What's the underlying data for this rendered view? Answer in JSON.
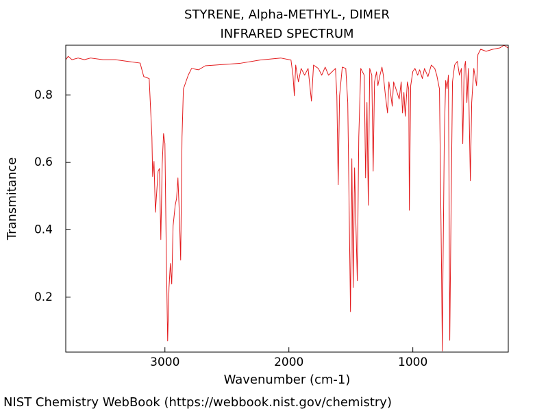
{
  "chart_data": {
    "type": "line",
    "title": "STYRENE, Alpha-METHYL-, DIMER",
    "subtitle": "INFRARED SPECTRUM",
    "x_label": "Wavenumber (cm-1)",
    "y_label": "Transmitance",
    "footer": "NIST Chemistry WebBook (https://webbook.nist.gov/chemistry)",
    "color": "#e31a1c",
    "xlim": [
      3800,
      230
    ],
    "ylim": [
      0.037,
      0.948
    ],
    "xticks": [
      3000,
      2000,
      1000
    ],
    "yticks": [
      0.2,
      0.4,
      0.6,
      0.8
    ],
    "x": [
      3800,
      3780,
      3750,
      3700,
      3650,
      3600,
      3500,
      3400,
      3300,
      3200,
      3171,
      3127,
      3105,
      3099,
      3088,
      3077,
      3055,
      3044,
      3033,
      3022,
      3011,
      3000,
      2989,
      2978,
      2967,
      2956,
      2945,
      2934,
      2917,
      2906,
      2895,
      2884,
      2873,
      2862,
      2851,
      2812,
      2785,
      2729,
      2674,
      2398,
      2232,
      2066,
      1983,
      1967,
      1956,
      1945,
      1923,
      1901,
      1873,
      1845,
      1818,
      1801,
      1762,
      1735,
      1707,
      1680,
      1652,
      1624,
      1613,
      1602,
      1591,
      1569,
      1541,
      1525,
      1514,
      1503,
      1492,
      1481,
      1470,
      1459,
      1448,
      1436,
      1420,
      1392,
      1381,
      1370,
      1359,
      1348,
      1331,
      1320,
      1309,
      1293,
      1282,
      1265,
      1249,
      1238,
      1221,
      1204,
      1193,
      1177,
      1166,
      1155,
      1127,
      1110,
      1094,
      1083,
      1072,
      1061,
      1044,
      1033,
      1028,
      1017,
      1000,
      983,
      961,
      945,
      923,
      906,
      878,
      851,
      823,
      807,
      785,
      768,
      762,
      757,
      746,
      735,
      724,
      713,
      707,
      702,
      691,
      680,
      663,
      641,
      624,
      608,
      597,
      586,
      575,
      564,
      552,
      536,
      525,
      508,
      486,
      475,
      453,
      409,
      354,
      298,
      265,
      232
    ],
    "values": [
      0.905,
      0.915,
      0.905,
      0.91,
      0.905,
      0.91,
      0.905,
      0.905,
      0.9,
      0.895,
      0.855,
      0.849,
      0.676,
      0.558,
      0.603,
      0.452,
      0.574,
      0.582,
      0.371,
      0.595,
      0.686,
      0.656,
      0.33,
      0.07,
      0.229,
      0.3,
      0.239,
      0.412,
      0.473,
      0.493,
      0.554,
      0.452,
      0.31,
      0.676,
      0.818,
      0.859,
      0.879,
      0.875,
      0.887,
      0.894,
      0.904,
      0.91,
      0.904,
      0.859,
      0.798,
      0.889,
      0.839,
      0.879,
      0.859,
      0.879,
      0.782,
      0.889,
      0.879,
      0.859,
      0.883,
      0.859,
      0.869,
      0.879,
      0.798,
      0.534,
      0.798,
      0.883,
      0.879,
      0.778,
      0.473,
      0.157,
      0.611,
      0.229,
      0.584,
      0.412,
      0.249,
      0.676,
      0.879,
      0.859,
      0.554,
      0.778,
      0.473,
      0.879,
      0.859,
      0.574,
      0.839,
      0.869,
      0.828,
      0.859,
      0.883,
      0.859,
      0.798,
      0.747,
      0.839,
      0.798,
      0.767,
      0.839,
      0.808,
      0.788,
      0.839,
      0.747,
      0.808,
      0.737,
      0.839,
      0.818,
      0.458,
      0.828,
      0.87,
      0.879,
      0.859,
      0.875,
      0.849,
      0.879,
      0.855,
      0.889,
      0.879,
      0.859,
      0.818,
      0.269,
      0.04,
      0.269,
      0.676,
      0.843,
      0.818,
      0.859,
      0.473,
      0.072,
      0.473,
      0.839,
      0.889,
      0.9,
      0.859,
      0.879,
      0.656,
      0.879,
      0.9,
      0.778,
      0.879,
      0.546,
      0.778,
      0.879,
      0.828,
      0.92,
      0.936,
      0.93,
      0.936,
      0.94,
      0.948,
      0.94
    ]
  }
}
